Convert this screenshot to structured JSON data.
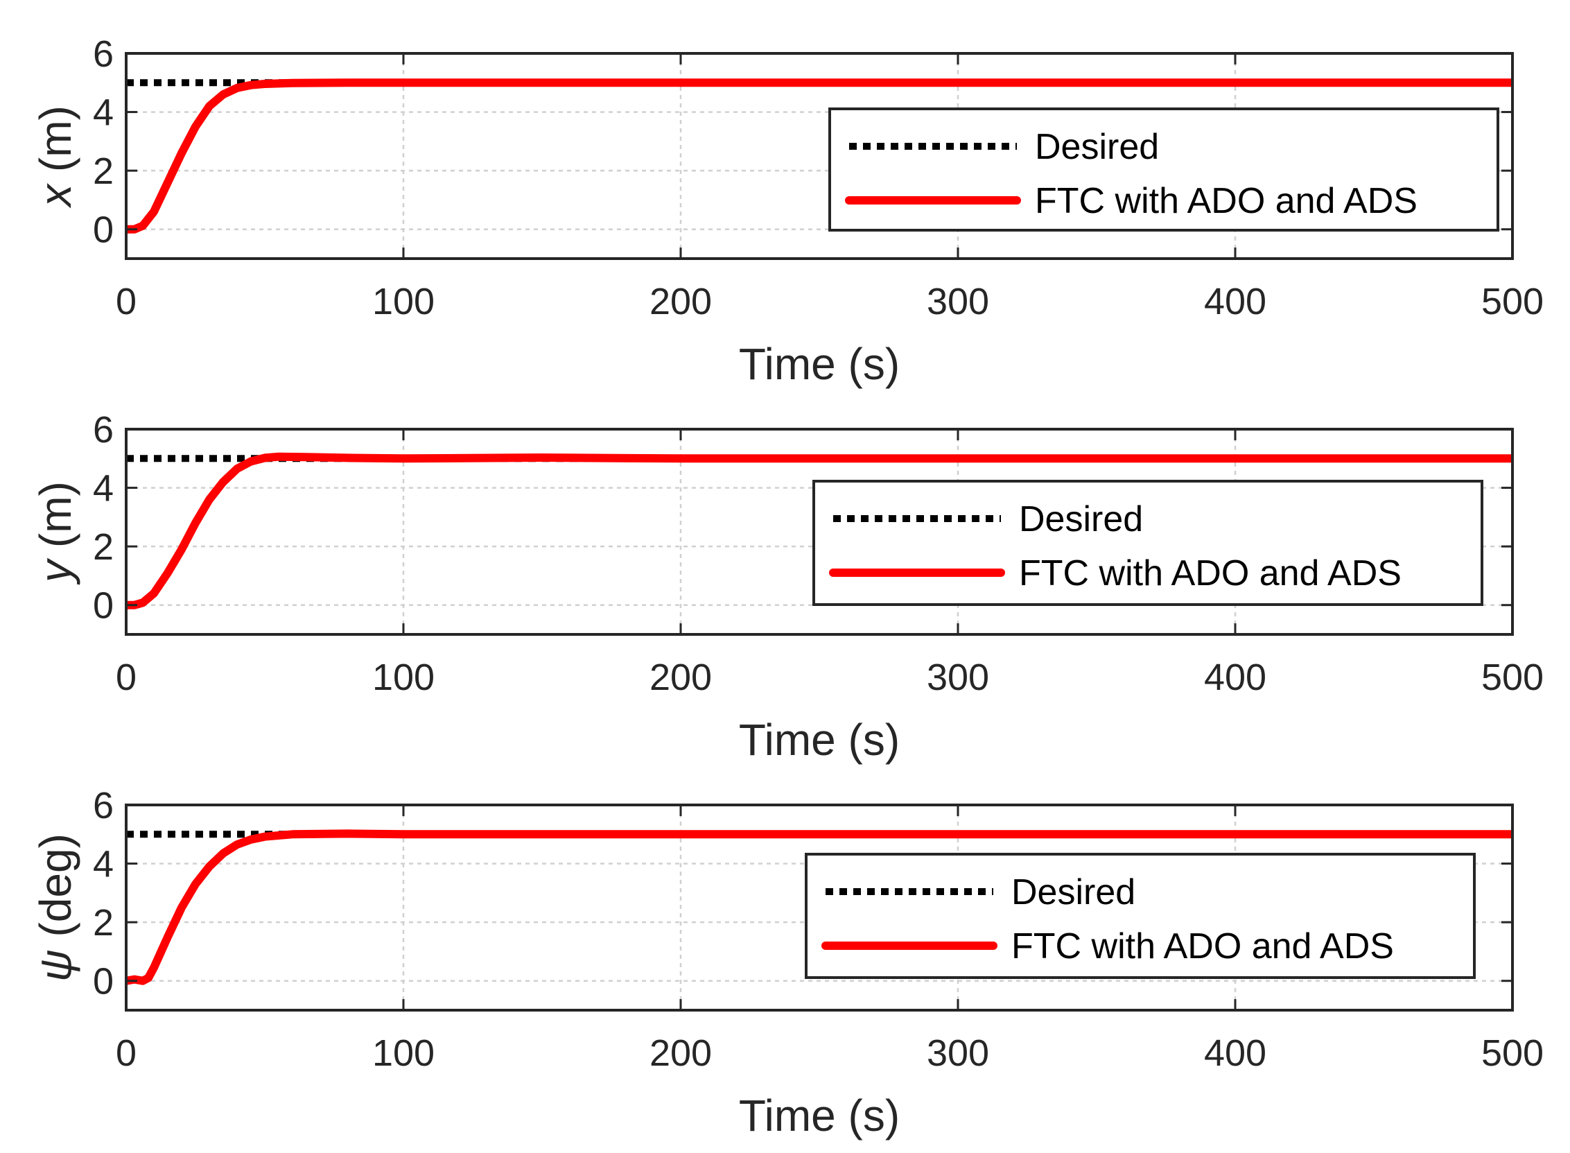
{
  "chart_data": [
    {
      "type": "line",
      "xlabel": "Time (s)",
      "ylabel_var": "x",
      "ylabel_unit": " (m)",
      "xlim": [
        0,
        500
      ],
      "ylim": [
        -1,
        6
      ],
      "xticks": [
        0,
        100,
        200,
        300,
        400,
        500
      ],
      "yticks": [
        0,
        2,
        4,
        6
      ],
      "grid": true,
      "legend_position": "right-center",
      "series": [
        {
          "name": "Desired",
          "style": "dotted",
          "color": "#000000",
          "x": [
            0,
            500
          ],
          "y": [
            5,
            5
          ]
        },
        {
          "name": "FTC with ADO and ADS",
          "style": "solid",
          "color": "#ff0000",
          "x": [
            0,
            3,
            6,
            10,
            15,
            20,
            25,
            30,
            35,
            40,
            45,
            50,
            60,
            80,
            100,
            200,
            300,
            400,
            500
          ],
          "y": [
            0,
            0,
            0.12,
            0.6,
            1.6,
            2.6,
            3.5,
            4.2,
            4.6,
            4.82,
            4.92,
            4.96,
            4.99,
            5,
            5,
            5,
            5,
            5,
            5
          ]
        }
      ]
    },
    {
      "type": "line",
      "xlabel": "Time (s)",
      "ylabel_var": "y",
      "ylabel_unit": " (m)",
      "xlim": [
        0,
        500
      ],
      "ylim": [
        -1,
        6
      ],
      "xticks": [
        0,
        100,
        200,
        300,
        400,
        500
      ],
      "yticks": [
        0,
        2,
        4,
        6
      ],
      "grid": true,
      "legend_position": "right-center",
      "series": [
        {
          "name": "Desired",
          "style": "dotted",
          "color": "#000000",
          "x": [
            0,
            500
          ],
          "y": [
            5,
            5
          ]
        },
        {
          "name": "FTC with ADO and ADS",
          "style": "solid",
          "color": "#ff0000",
          "x": [
            0,
            3,
            6,
            10,
            15,
            20,
            25,
            30,
            35,
            40,
            45,
            50,
            55,
            65,
            80,
            100,
            150,
            200,
            300,
            400,
            500
          ],
          "y": [
            0,
            0,
            0.08,
            0.4,
            1.1,
            1.9,
            2.8,
            3.6,
            4.2,
            4.65,
            4.9,
            5.02,
            5.06,
            5.05,
            5.02,
            5.0,
            5.03,
            5.0,
            5.0,
            5.0,
            5.0
          ]
        }
      ]
    },
    {
      "type": "line",
      "xlabel": "Time (s)",
      "ylabel_var": "ψ",
      "ylabel_unit": " (deg)",
      "xlim": [
        0,
        500
      ],
      "ylim": [
        -1,
        6
      ],
      "xticks": [
        0,
        100,
        200,
        300,
        400,
        500
      ],
      "yticks": [
        0,
        2,
        4,
        6
      ],
      "grid": true,
      "legend_position": "right-center",
      "series": [
        {
          "name": "Desired",
          "style": "dotted",
          "color": "#000000",
          "x": [
            0,
            500
          ],
          "y": [
            5,
            5
          ]
        },
        {
          "name": "FTC with ADO and ADS",
          "style": "solid",
          "color": "#ff0000",
          "x": [
            0,
            3,
            6,
            8,
            10,
            15,
            20,
            25,
            30,
            35,
            40,
            45,
            50,
            60,
            80,
            100,
            200,
            300,
            400,
            500
          ],
          "y": [
            0,
            0.05,
            0,
            0.1,
            0.45,
            1.5,
            2.5,
            3.3,
            3.9,
            4.35,
            4.65,
            4.82,
            4.92,
            5.0,
            5.02,
            5.0,
            5.0,
            5.0,
            5.0,
            5.0
          ]
        }
      ]
    }
  ]
}
